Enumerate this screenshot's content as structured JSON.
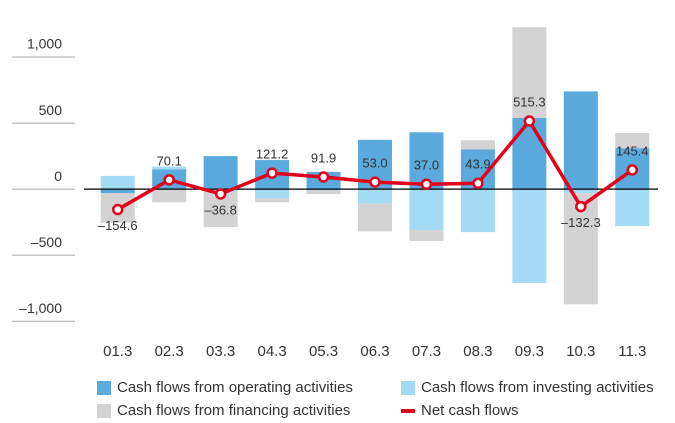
{
  "chart_data": {
    "type": "bar",
    "stacked": true,
    "categories": [
      "01.3",
      "02.3",
      "03.3",
      "04.3",
      "05.3",
      "06.3",
      "07.3",
      "08.3",
      "09.3",
      "10.3",
      "11.3"
    ],
    "series": [
      {
        "name": "Cash flows from operating activities",
        "color": "#5aaade",
        "values": [
          -30,
          150,
          250,
          220,
          130,
          373,
          430,
          300,
          540,
          740,
          310
        ]
      },
      {
        "name": "Cash flows from investing activities",
        "color": "#a3daf4",
        "values": [
          100,
          20,
          -20,
          -70,
          -10,
          -110,
          -310,
          -326,
          -710,
          -30,
          -280
        ]
      },
      {
        "name": "Cash flows from financing activities",
        "color": "#d3d3d3",
        "values": [
          -225,
          -100,
          -267,
          -29,
          -28,
          -210,
          -83,
          70,
          685,
          -842,
          115.4
        ]
      },
      {
        "name": "Net cash flows",
        "color": "#e2001a",
        "type": "line",
        "values": [
          -154.6,
          70.1,
          -36.8,
          121.2,
          91.9,
          53.0,
          37.0,
          43.9,
          515.3,
          -132.3,
          145.4
        ],
        "value_labels": [
          "–154.6",
          "70.1",
          "–36.8",
          "121.2",
          "91.9",
          "53.0",
          "37.0",
          "43.9",
          "515.3",
          "–132.3",
          "145.4"
        ]
      }
    ],
    "ylim": [
      -1150,
      1250
    ],
    "yticks": [
      {
        "value": -1000,
        "label": "–1,000"
      },
      {
        "value": -500,
        "label": "–500"
      },
      0,
      500,
      {
        "value": 1000,
        "label": "1,000"
      }
    ],
    "legend": "bottom"
  }
}
